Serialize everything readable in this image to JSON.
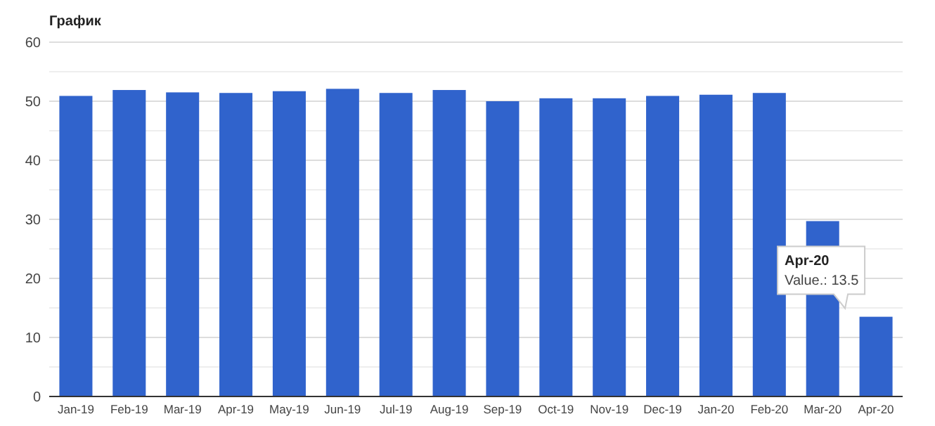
{
  "chart_data": {
    "type": "bar",
    "title": "График",
    "categories": [
      "Jan-19",
      "Feb-19",
      "Mar-19",
      "Apr-19",
      "May-19",
      "Jun-19",
      "Jul-19",
      "Aug-19",
      "Sep-19",
      "Oct-19",
      "Nov-19",
      "Dec-19",
      "Jan-20",
      "Feb-20",
      "Mar-20",
      "Apr-20"
    ],
    "values": [
      50.9,
      51.9,
      51.5,
      51.4,
      51.7,
      52.1,
      51.4,
      51.9,
      50.0,
      50.5,
      50.5,
      50.9,
      51.1,
      51.4,
      29.7,
      13.5
    ],
    "color": "#3063cc",
    "ylim": [
      0,
      60
    ],
    "yticks": [
      0,
      {
        "value": 5,
        "label": null
      },
      10,
      {
        "value": 15,
        "label": null
      },
      20,
      {
        "value": 25,
        "label": null
      },
      30,
      {
        "value": 35,
        "label": null
      },
      40,
      {
        "value": 45,
        "label": null
      },
      50,
      {
        "value": 55,
        "label": null
      },
      60
    ],
    "grid": "y",
    "annotations": [
      "Apr-20",
      "Value.: 13.5"
    ]
  }
}
